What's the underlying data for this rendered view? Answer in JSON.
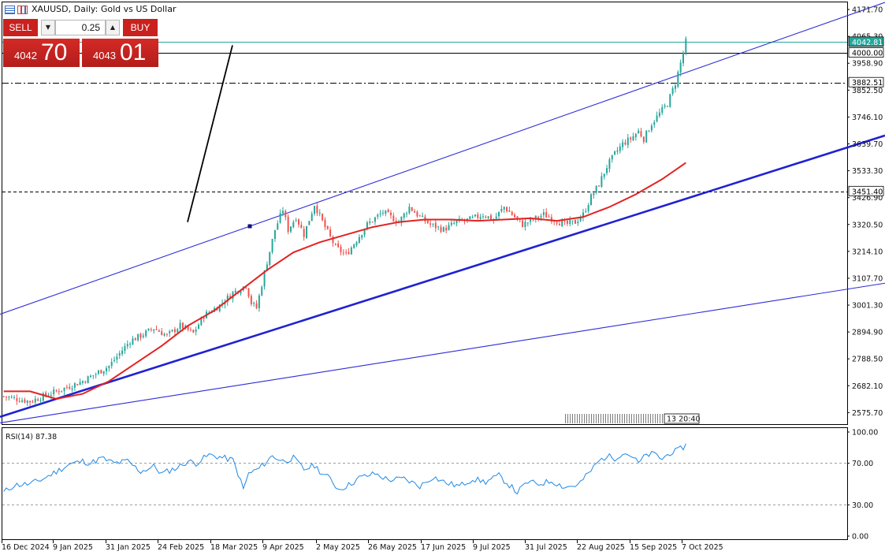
{
  "header": {
    "symbol_description": "XAUUSD, Daily:  Gold vs US Dollar"
  },
  "trade_panel": {
    "sell_label": "SELL",
    "buy_label": "BUY",
    "volume": "0.25",
    "sell_price_small": "4042",
    "sell_price_big": "70",
    "buy_price_small": "4043",
    "buy_price_big": "01"
  },
  "chart_data": {
    "type": "candlestick",
    "symbol": "XAUUSD",
    "timeframe": "Daily",
    "y_range": [
      2530,
      4200
    ],
    "y_ticks": [
      "4171.70",
      "4065.30",
      "3958.90",
      "3852.50",
      "3746.10",
      "3639.70",
      "3533.30",
      "3426.90",
      "3320.50",
      "3214.10",
      "3107.70",
      "3001.30",
      "2894.90",
      "2788.50",
      "2682.10",
      "2575.70"
    ],
    "x_tick_labels": [
      "16 Dec 2024",
      "9 Jan 2025",
      "31 Jan 2025",
      "24 Feb 2025",
      "18 Mar 2025",
      "9 Apr 2025",
      "2 May 2025",
      "26 May 2025",
      "17 Jun 2025",
      "9 Jul 2025",
      "31 Jul 2025",
      "22 Aug 2025",
      "15 Sep 2025",
      "7 Oct 2025"
    ],
    "close_path": [
      [
        0,
        2640
      ],
      [
        10,
        2620
      ],
      [
        20,
        2660
      ],
      [
        30,
        2700
      ],
      [
        40,
        2760
      ],
      [
        48,
        2860
      ],
      [
        52,
        2880
      ],
      [
        57,
        2910
      ],
      [
        62,
        2880
      ],
      [
        67,
        2920
      ],
      [
        72,
        2890
      ],
      [
        76,
        2960
      ],
      [
        82,
        3000
      ],
      [
        87,
        3050
      ],
      [
        92,
        3080
      ],
      [
        94,
        3010
      ],
      [
        96,
        2990
      ],
      [
        99,
        3130
      ],
      [
        103,
        3300
      ],
      [
        106,
        3380
      ],
      [
        108,
        3300
      ],
      [
        111,
        3350
      ],
      [
        114,
        3280
      ],
      [
        118,
        3400
      ],
      [
        122,
        3310
      ],
      [
        126,
        3230
      ],
      [
        130,
        3200
      ],
      [
        134,
        3260
      ],
      [
        138,
        3320
      ],
      [
        144,
        3370
      ],
      [
        150,
        3330
      ],
      [
        154,
        3390
      ],
      [
        158,
        3350
      ],
      [
        162,
        3320
      ],
      [
        167,
        3300
      ],
      [
        172,
        3330
      ],
      [
        177,
        3340
      ],
      [
        182,
        3360
      ],
      [
        186,
        3340
      ],
      [
        190,
        3390
      ],
      [
        193,
        3360
      ],
      [
        197,
        3320
      ],
      [
        201,
        3340
      ],
      [
        205,
        3360
      ],
      [
        209,
        3340
      ],
      [
        213,
        3320
      ],
      [
        217,
        3330
      ],
      [
        220,
        3360
      ],
      [
        223,
        3430
      ],
      [
        226,
        3480
      ],
      [
        229,
        3550
      ],
      [
        232,
        3600
      ],
      [
        235,
        3640
      ],
      [
        238,
        3660
      ],
      [
        241,
        3690
      ],
      [
        243,
        3660
      ],
      [
        246,
        3720
      ],
      [
        249,
        3760
      ],
      [
        252,
        3800
      ],
      [
        255,
        3880
      ],
      [
        257,
        3960
      ],
      [
        259,
        4042.81
      ]
    ],
    "ma_path": [
      [
        0,
        2660
      ],
      [
        10,
        2660
      ],
      [
        20,
        2630
      ],
      [
        30,
        2650
      ],
      [
        40,
        2700
      ],
      [
        50,
        2770
      ],
      [
        60,
        2840
      ],
      [
        70,
        2920
      ],
      [
        80,
        2980
      ],
      [
        90,
        3060
      ],
      [
        100,
        3140
      ],
      [
        110,
        3210
      ],
      [
        120,
        3250
      ],
      [
        130,
        3280
      ],
      [
        140,
        3310
      ],
      [
        150,
        3330
      ],
      [
        160,
        3340
      ],
      [
        170,
        3340
      ],
      [
        180,
        3335
      ],
      [
        190,
        3340
      ],
      [
        200,
        3345
      ],
      [
        210,
        3335
      ],
      [
        220,
        3350
      ],
      [
        230,
        3390
      ],
      [
        240,
        3440
      ],
      [
        250,
        3500
      ],
      [
        259,
        3565
      ]
    ],
    "horizontal_levels": [
      {
        "price": 4042.81,
        "label": "4042.81",
        "style": "solid",
        "color": "#26a69a"
      },
      {
        "price": 4000.0,
        "label": "4000.00",
        "style": "solid",
        "color": "#000000"
      },
      {
        "price": 3882.51,
        "label": "3882.51",
        "style": "dashdot",
        "color": "#000000"
      },
      {
        "price": 3451.4,
        "label": "3451.40",
        "style": "dashed",
        "color": "#000000"
      }
    ],
    "trend_lines": [
      {
        "name": "support",
        "from": [
          0,
          2559
        ],
        "to": [
          1123,
          3673
        ],
        "color": "#1f22d1",
        "width": 2.6
      },
      {
        "name": "channel-upper",
        "from": [
          0,
          2965
        ],
        "to": [
          1123,
          4200
        ],
        "color": "#2b2bd9",
        "width": 1.1
      },
      {
        "name": "channel-lower",
        "from": [
          0,
          2535
        ],
        "to": [
          1123,
          3088
        ],
        "color": "#2b2bd9",
        "width": 1.1
      },
      {
        "name": "steep-trend",
        "from": [
          238,
          3330
        ],
        "to": [
          295,
          4030
        ],
        "color": "#000000",
        "width": 1.8
      }
    ],
    "countdown_label": "13 20:40",
    "rsi": {
      "label": "RSI(14) 87.38",
      "y_range": [
        0,
        100
      ],
      "y_ticks": [
        "100.00",
        "70.00",
        "30.00",
        "0.00"
      ],
      "levels": [
        70,
        30
      ],
      "path": [
        [
          0,
          42
        ],
        [
          4,
          49
        ],
        [
          10,
          50
        ],
        [
          15,
          55
        ],
        [
          20,
          62
        ],
        [
          25,
          69
        ],
        [
          30,
          72
        ],
        [
          33,
          70
        ],
        [
          37,
          75
        ],
        [
          42,
          70
        ],
        [
          47,
          72
        ],
        [
          52,
          62
        ],
        [
          57,
          67
        ],
        [
          60,
          60
        ],
        [
          66,
          66
        ],
        [
          70,
          72
        ],
        [
          73,
          70
        ],
        [
          78,
          78
        ],
        [
          82,
          76
        ],
        [
          87,
          73
        ],
        [
          89,
          60
        ],
        [
          91,
          45
        ],
        [
          93,
          60
        ],
        [
          97,
          65
        ],
        [
          102,
          77
        ],
        [
          106,
          72
        ],
        [
          110,
          75
        ],
        [
          114,
          64
        ],
        [
          118,
          68
        ],
        [
          121,
          60
        ],
        [
          124,
          55
        ],
        [
          127,
          45
        ],
        [
          131,
          49
        ],
        [
          135,
          56
        ],
        [
          141,
          60
        ],
        [
          146,
          54
        ],
        [
          152,
          55
        ],
        [
          158,
          48
        ],
        [
          163,
          57
        ],
        [
          168,
          51
        ],
        [
          173,
          48
        ],
        [
          178,
          55
        ],
        [
          183,
          52
        ],
        [
          188,
          58
        ],
        [
          192,
          49
        ],
        [
          195,
          42
        ],
        [
          199,
          52
        ],
        [
          203,
          50
        ],
        [
          208,
          53
        ],
        [
          213,
          47
        ],
        [
          218,
          49
        ],
        [
          222,
          60
        ],
        [
          226,
          72
        ],
        [
          229,
          77
        ],
        [
          232,
          75
        ],
        [
          235,
          80
        ],
        [
          238,
          78
        ],
        [
          241,
          70
        ],
        [
          244,
          78
        ],
        [
          247,
          79
        ],
        [
          250,
          74
        ],
        [
          253,
          80
        ],
        [
          256,
          82
        ],
        [
          259,
          87.38
        ]
      ]
    }
  }
}
